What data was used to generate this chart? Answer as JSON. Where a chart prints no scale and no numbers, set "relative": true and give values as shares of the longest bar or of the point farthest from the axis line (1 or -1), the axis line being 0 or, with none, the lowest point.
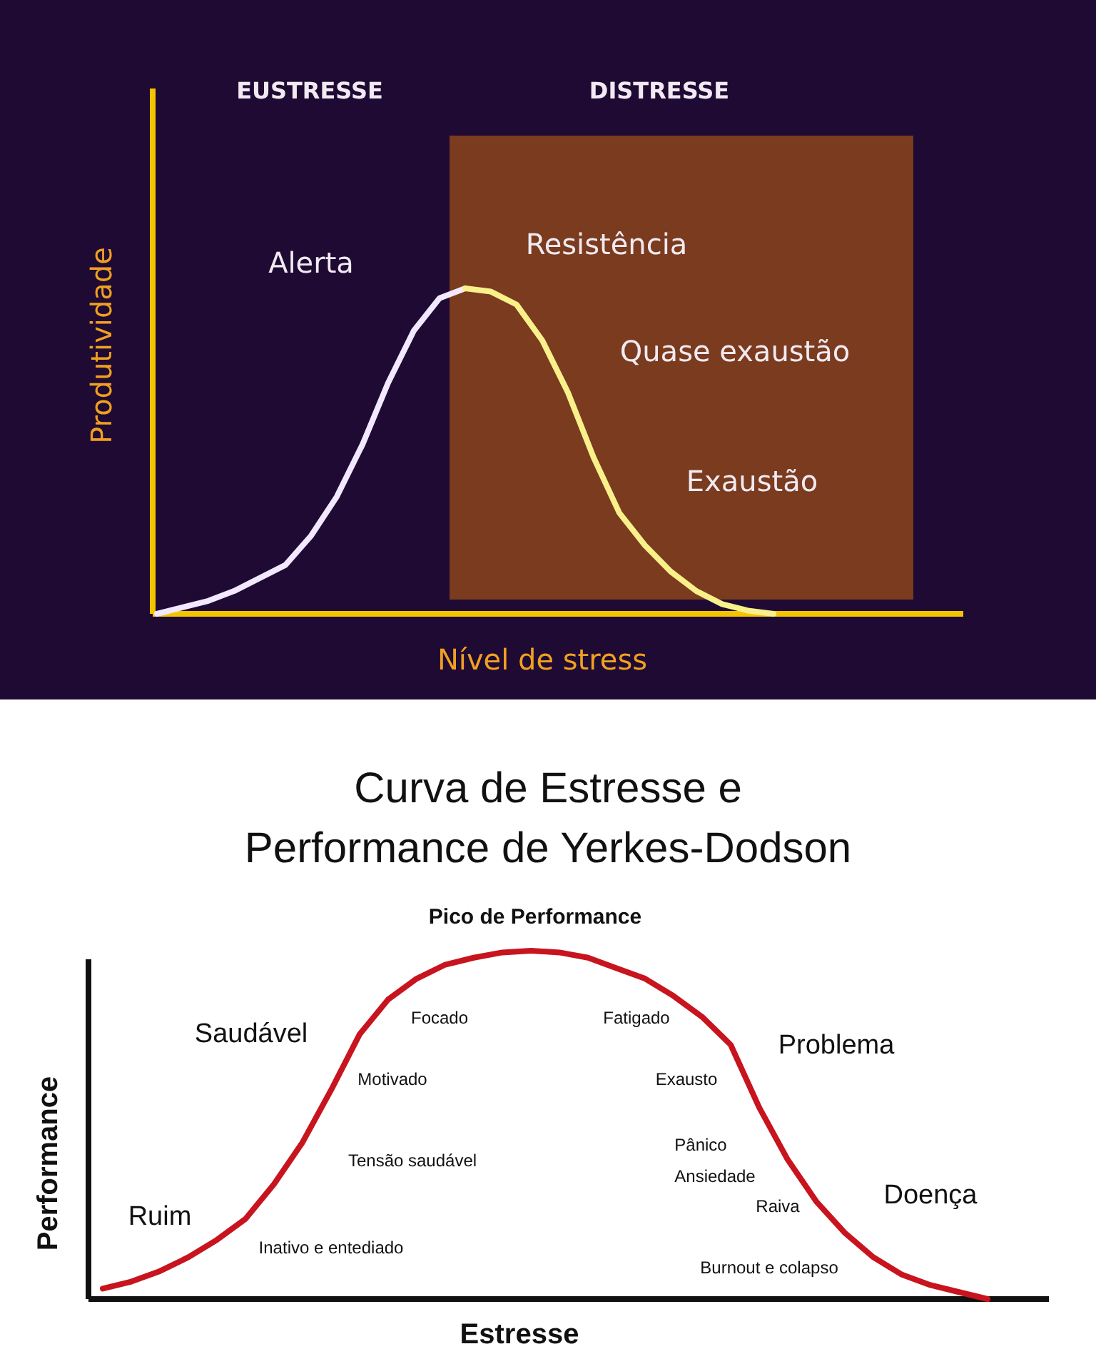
{
  "chart_data": [
    {
      "type": "line",
      "relative": true,
      "xlabel": "Nível de stress",
      "ylabel": "Produtividade",
      "categories": [
        null,
        null,
        null,
        null,
        null,
        null,
        null,
        null,
        null,
        null,
        null,
        null,
        null,
        null,
        null,
        null,
        null,
        null,
        null,
        null,
        null,
        null,
        null,
        null,
        null,
        null,
        null,
        null,
        null,
        null,
        null,
        null
      ],
      "series": [
        {
          "color": "#f2e8ff",
          "values": [
            0.0,
            0.02,
            0.04,
            0.07,
            0.11,
            0.15,
            0.24,
            0.36,
            0.52,
            0.71,
            0.87,
            0.97,
            1.0,
            null,
            null,
            null,
            null,
            null,
            null,
            null,
            null,
            null,
            null,
            null,
            null,
            null,
            null,
            null,
            null,
            null,
            null,
            null
          ]
        },
        {
          "color": "#f8f08a",
          "values": [
            null,
            null,
            null,
            null,
            null,
            null,
            null,
            null,
            null,
            null,
            null,
            null,
            1.0,
            0.99,
            0.95,
            0.84,
            0.68,
            0.48,
            0.31,
            0.21,
            0.13,
            0.07,
            0.03,
            0.01,
            0.0,
            null,
            null,
            null,
            null,
            null,
            null,
            null
          ]
        }
      ],
      "annotations": [
        "EUSTRESSE",
        "DISTRESSE",
        "Alerta",
        "Resistência",
        "Quase exaustão",
        "Exaustão"
      ]
    },
    {
      "type": "line",
      "relative": true,
      "title": "Curva de Estresse e\nPerformance de Yerkes-Dodson",
      "xlabel": "Estresse",
      "ylabel": "Performance",
      "categories": [
        null,
        null,
        null,
        null,
        null,
        null,
        null,
        null,
        null,
        null,
        null,
        null,
        null,
        null,
        null,
        null,
        null,
        null,
        null,
        null,
        null,
        null,
        null,
        null,
        null,
        null,
        null,
        null,
        null,
        null,
        null,
        null,
        null
      ],
      "series": [
        {
          "color": "#c8141e",
          "values": [
            0.03,
            0.05,
            0.08,
            0.12,
            0.17,
            0.23,
            0.33,
            0.45,
            0.6,
            0.76,
            0.86,
            0.92,
            0.96,
            0.98,
            0.995,
            1.0,
            0.995,
            0.98,
            0.95,
            0.92,
            0.87,
            0.81,
            0.73,
            0.55,
            0.4,
            0.28,
            0.19,
            0.12,
            0.07,
            0.04,
            0.02,
            0.0,
            null
          ]
        }
      ],
      "annotations": [
        "Pico de Performance",
        "Saudável",
        "Focado",
        "Motivado",
        "Tensão saudável",
        "Ruim",
        "Inativo e entediado",
        "Fatigado",
        "Exausto",
        "Problema",
        "Pânico",
        "Ansiedade",
        "Raiva",
        "Doença",
        "Burnout e colapso"
      ]
    }
  ]
}
